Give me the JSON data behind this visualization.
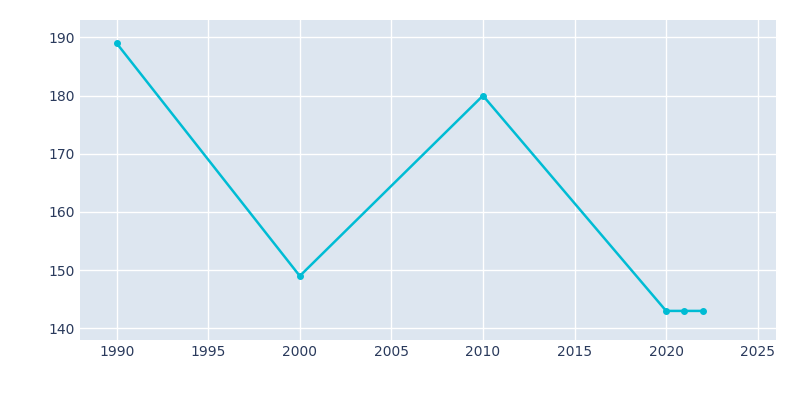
{
  "x_values": [
    1990,
    2000,
    2010,
    2020,
    2021,
    2022
  ],
  "y_values": [
    189,
    149,
    180,
    143,
    143,
    143
  ],
  "line_color": "#00bcd4",
  "axes_facecolor": "#dde6f0",
  "figure_facecolor": "#ffffff",
  "grid_color": "#ffffff",
  "tick_label_color": "#2a3a5c",
  "xlim": [
    1988,
    2026
  ],
  "ylim": [
    138,
    193
  ],
  "yticks": [
    140,
    150,
    160,
    170,
    180,
    190
  ],
  "xticks": [
    1990,
    1995,
    2000,
    2005,
    2010,
    2015,
    2020,
    2025
  ],
  "linewidth": 1.8,
  "marker": "o",
  "markersize": 4
}
